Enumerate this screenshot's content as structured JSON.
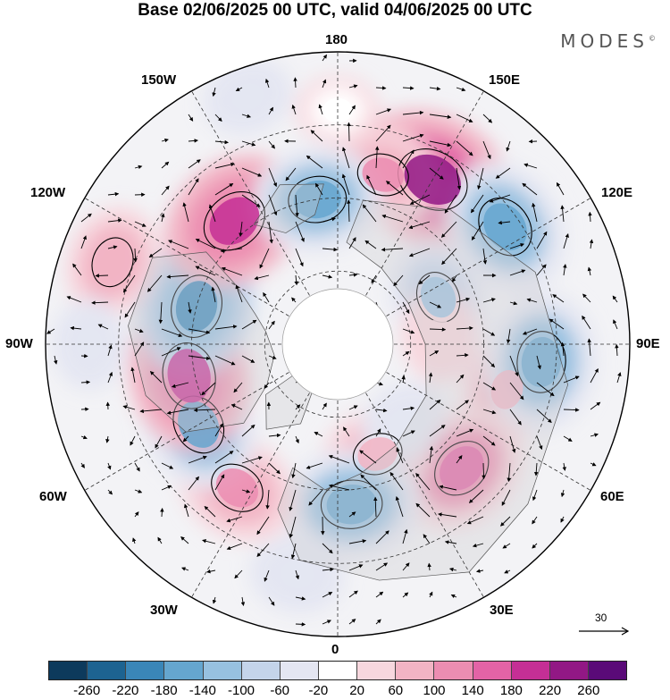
{
  "title": "Base 02/06/2025 00 UTC, valid 04/06/2025 00 UTC",
  "brand": {
    "text": "MODES",
    "mark": "©"
  },
  "longitude_labels": {
    "top": "180",
    "bottom": "0",
    "left": "90W",
    "right": "90E",
    "upper_left_1": "150W",
    "upper_left_2": "120W",
    "upper_right_1": "150E",
    "upper_right_2": "120E",
    "lower_left_1": "60W",
    "lower_left_2": "30W",
    "lower_right_1": "60E",
    "lower_right_2": "30E"
  },
  "reference_vector": {
    "label": "30"
  },
  "colorbar": {
    "colors": [
      "#0d3a5c",
      "#1d6391",
      "#3a86b8",
      "#65a6cf",
      "#97c1e0",
      "#c4d4ea",
      "#e4e6f2",
      "#ffffff",
      "#f7d7de",
      "#f2b4c4",
      "#ec8db1",
      "#e363a6",
      "#c52f95",
      "#921885",
      "#5a0a78"
    ],
    "ticks": [
      "-260",
      "-220",
      "-180",
      "-140",
      "-100",
      "-60",
      "-20",
      "20",
      "60",
      "100",
      "140",
      "180",
      "220",
      "260"
    ]
  },
  "anomalies": [
    {
      "lon": 180,
      "colat": 0.8,
      "value": 20
    },
    {
      "lon": 150,
      "colat": 0.65,
      "value": 240
    },
    {
      "lon": 125,
      "colat": 0.7,
      "value": -170
    },
    {
      "lon": 165,
      "colat": 0.6,
      "value": 110
    },
    {
      "lon": 115,
      "colat": 0.38,
      "value": -110
    },
    {
      "lon": 75,
      "colat": 0.6,
      "value": 90
    },
    {
      "lon": 95,
      "colat": 0.35,
      "value": 50
    },
    {
      "lon": 85,
      "colat": 0.7,
      "value": -170
    },
    {
      "lon": 45,
      "colat": 0.6,
      "value": 160
    },
    {
      "lon": 20,
      "colat": 0.4,
      "value": 100
    },
    {
      "lon": 40,
      "colat": 0.35,
      "value": -40
    },
    {
      "lon": 5,
      "colat": 0.55,
      "value": -170
    },
    {
      "lon": -35,
      "colat": 0.6,
      "value": 130
    },
    {
      "lon": -10,
      "colat": 0.8,
      "value": -50
    },
    {
      "lon": -60,
      "colat": 0.55,
      "value": -160
    },
    {
      "lon": -78,
      "colat": 0.52,
      "value": 200
    },
    {
      "lon": -105,
      "colat": 0.5,
      "value": -180
    },
    {
      "lon": -140,
      "colat": 0.55,
      "value": 200
    },
    {
      "lon": -172,
      "colat": 0.5,
      "value": -150
    },
    {
      "lon": -110,
      "colat": 0.82,
      "value": 100
    },
    {
      "lon": -90,
      "colat": 0.85,
      "value": -40
    },
    {
      "lon": -160,
      "colat": 0.9,
      "value": -40
    }
  ]
}
